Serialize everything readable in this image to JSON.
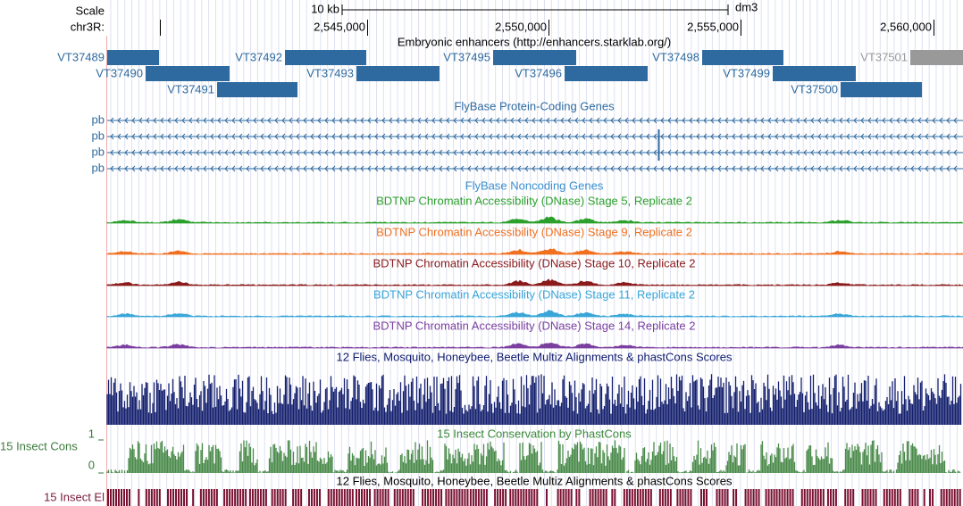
{
  "ruler": {
    "scale_label": "Scale",
    "scale_text": "10 kb",
    "assembly": "dm3",
    "chrom": "chr3R:",
    "positions": [
      "2,545,000",
      "2,550,000",
      "2,555,000",
      "2,560,000"
    ]
  },
  "tracks": {
    "enhancers": {
      "title": "Embryonic enhancers (http://enhancers.starklab.org/)",
      "features": [
        "VT37489",
        "VT37490",
        "VT37491",
        "VT37492",
        "VT37493",
        "VT37495",
        "VT37496",
        "VT37498",
        "VT37499",
        "VT37500",
        "VT37501"
      ]
    },
    "protein_coding": {
      "title": "FlyBase Protein-Coding Genes",
      "rows": [
        "pb",
        "pb",
        "pb",
        "pb"
      ]
    },
    "noncoding": {
      "title": "FlyBase Noncoding Genes"
    },
    "dnase": [
      {
        "title": "BDTNP Chromatin Accessibility (DNase) Stage 5, Replicate 2"
      },
      {
        "title": "BDTNP Chromatin Accessibility (DNase) Stage 9, Replicate 2"
      },
      {
        "title": "BDTNP Chromatin Accessibility (DNase) Stage 10, Replicate 2"
      },
      {
        "title": "BDTNP Chromatin Accessibility (DNase) Stage 11, Replicate 2"
      },
      {
        "title": "BDTNP Chromatin Accessibility (DNase) Stage 14, Replicate 2"
      }
    ],
    "multiz": {
      "title": "12 Flies, Mosquito, Honeybee, Beetle Multiz Alignments & phastCons Scores"
    },
    "cons": {
      "title": "15 Insect Conservation by PhastCons",
      "label": "15 Insect Cons",
      "max": "1",
      "min": "0"
    },
    "elements": {
      "title": "12 Flies, Mosquito, Honeybee, Beetle Multiz Alignments & phastCons Scores",
      "label": "15 Insect El"
    }
  }
}
